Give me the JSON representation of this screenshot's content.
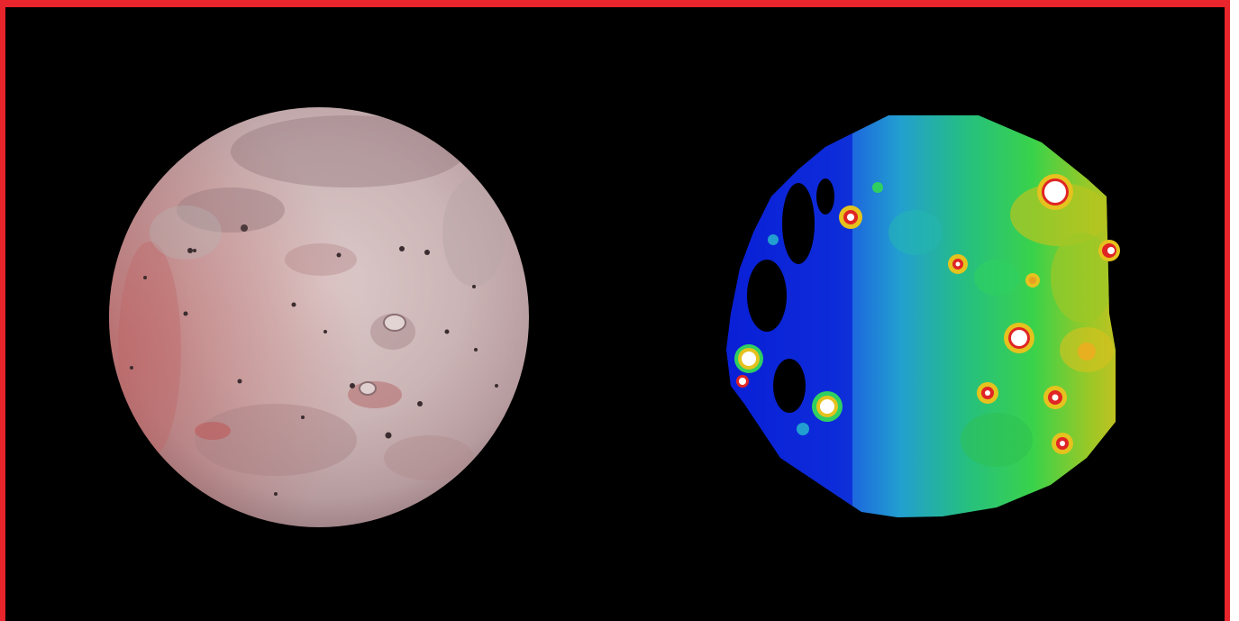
{
  "scene": {
    "frame_color": "#e8242c",
    "background_color": "#000000",
    "left_image": {
      "subject": "moon-visible-light",
      "base_color": "#c9b3b3",
      "shadow_tint": "#8a6e72",
      "lava_tint": "#c0504f"
    },
    "right_image": {
      "subject": "moon-infrared-heat-map",
      "palette": [
        "#0a1fd6",
        "#1a6fe0",
        "#22b3c8",
        "#2fd061",
        "#8ac82a",
        "#e5c21e",
        "#e02424",
        "#ffffff"
      ]
    }
  }
}
